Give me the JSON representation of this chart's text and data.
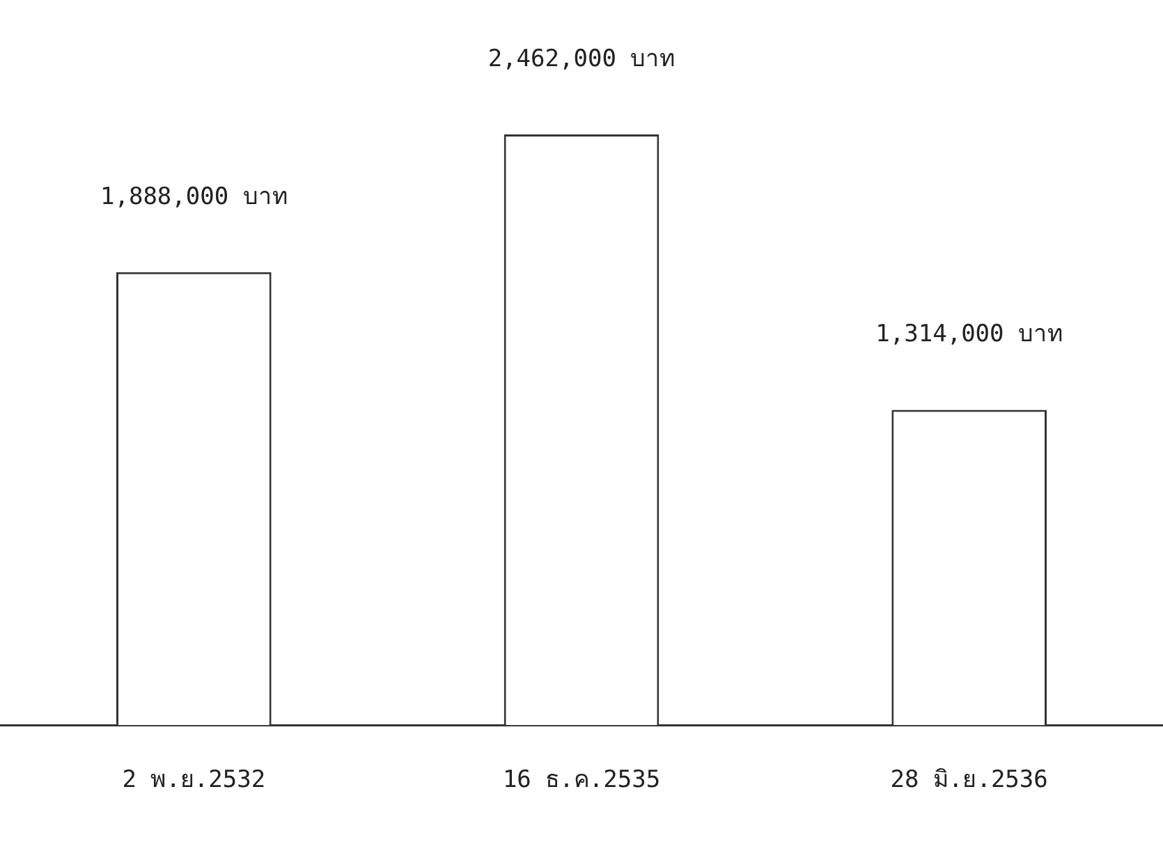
{
  "chart_data": {
    "type": "bar",
    "categories": [
      "2 พ.ย.2532",
      "16 ธ.ค.2535",
      "28 มิ.ย.2536"
    ],
    "values": [
      1888000,
      2462000,
      1314000
    ],
    "value_labels": [
      "1,888,000 บาท",
      "2,462,000 บาท",
      "1,314,000 บาท"
    ],
    "color": "#ffffff",
    "grid": false,
    "legend": false,
    "tick_labels": "x"
  }
}
